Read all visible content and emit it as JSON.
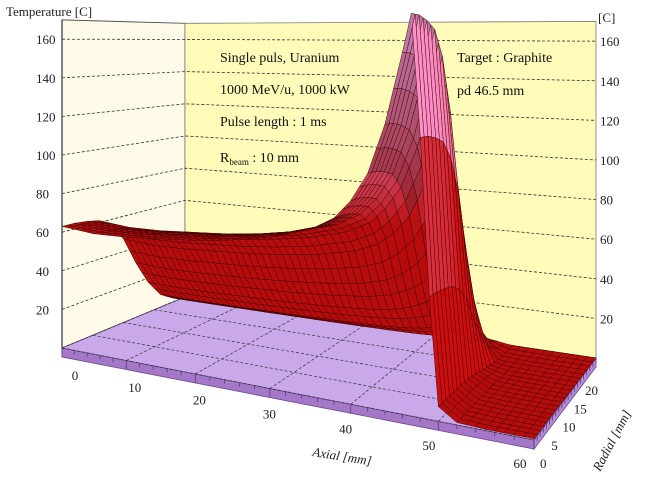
{
  "chart_data": {
    "type": "surface3d",
    "ylabel_left": "Temperature [C]",
    "ylabel_right": "[C]",
    "xlabel": "Axial [mm]",
    "zlabel": "Radial [mm]",
    "temperature_ticks": [
      "20",
      "40",
      "60",
      "80",
      "100",
      "120",
      "140",
      "160"
    ],
    "temperature_range": [
      0,
      170
    ],
    "axial_ticks": [
      "0",
      "10",
      "20",
      "30",
      "40",
      "50",
      "60"
    ],
    "axial_range": [
      0,
      60
    ],
    "radial_ticks": [
      "0",
      "5",
      "10",
      "15",
      "20"
    ],
    "radial_range": [
      0,
      20
    ],
    "annotations": {
      "line1": "Single puls, Uranium",
      "line2": "1000 MeV/u, 1000 kW",
      "line3": "Pulse length : 1 ms",
      "rbeam_main": "R",
      "rbeam_sub": "beam",
      "rbeam_rest": " : 10 mm",
      "target": "Target : Graphite",
      "pd": "pd 46.5 mm"
    },
    "axial_profile_at_r0": {
      "axial_mm": [
        0,
        5,
        10,
        15,
        20,
        25,
        30,
        35,
        38,
        40,
        42,
        44,
        45,
        46,
        47,
        48,
        49,
        50,
        52,
        55,
        60
      ],
      "temperature_C": [
        63,
        61,
        61,
        62,
        63,
        65,
        68,
        73,
        79,
        87,
        99,
        120,
        135,
        150,
        166,
        115,
        50,
        6,
        1,
        0.5,
        0.5
      ]
    },
    "radial_profile_factor": {
      "radial_mm": [
        0,
        2,
        4,
        6,
        8,
        10,
        12,
        14,
        16,
        18,
        20
      ],
      "factor": [
        1,
        1,
        0.99,
        0.97,
        0.9,
        0.75,
        0.5,
        0.28,
        0.12,
        0.04,
        0.01
      ]
    },
    "peak": {
      "temperature_C": 166,
      "axial_mm": 47
    },
    "colors": {
      "surface_low": "#b80c0c",
      "surface_high": "#f0a0e0",
      "floor": "#c9a9ea",
      "back_wall": "#fffbb8",
      "side_wall": "#fffbe8"
    }
  }
}
